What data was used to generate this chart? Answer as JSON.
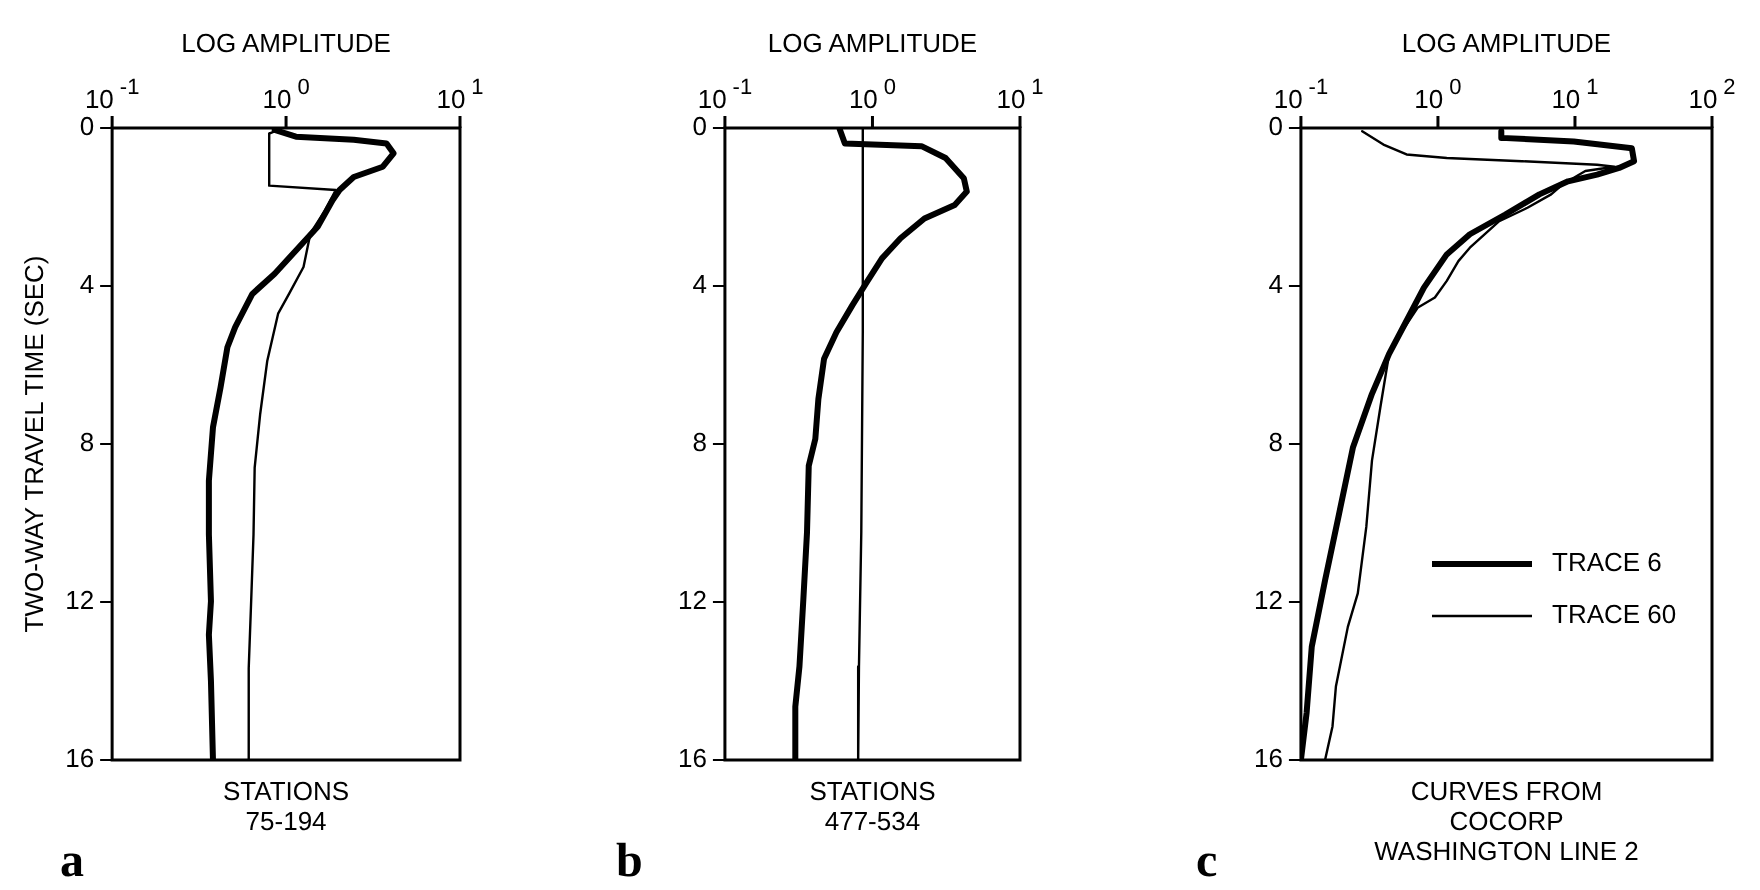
{
  "chart_data": [
    {
      "type": "line",
      "xlabel": "LOG AMPLITUDE",
      "ylabel": "TWO-WAY TRAVEL TIME (SEC)",
      "log": "x",
      "xlim": [
        0.1,
        10
      ],
      "xticks": [
        {
          "value": 0.1,
          "label": "10$^{-1}$"
        },
        {
          "value": 1,
          "label": "10$^{0}$"
        },
        {
          "value": 10,
          "label": "10$^{1}$"
        }
      ],
      "ylim": [
        16,
        0
      ],
      "yticks": [
        0,
        4,
        8,
        12,
        16
      ],
      "grid": false,
      "legend": false,
      "marker": "none",
      "line_style": "solid",
      "annotations": [
        "STATIONS",
        "75-194",
        "a"
      ],
      "series": [
        {
          "color": "#000000",
          "x": [
            0.86,
            1.14,
            2.45,
            3.78,
            4.15,
            3.6,
            2.45,
            2.03,
            1.85,
            1.52,
            1.14,
            0.86,
            0.64,
            0.51,
            0.46,
            0.42,
            0.38,
            0.36,
            0.36,
            0.37,
            0.36,
            0.37,
            0.38
          ],
          "values": [
            0.05,
            0.22,
            0.3,
            0.39,
            0.64,
            0.98,
            1.24,
            1.57,
            1.83,
            2.5,
            3.1,
            3.69,
            4.2,
            5.04,
            5.55,
            6.57,
            7.58,
            8.93,
            10.29,
            11.98,
            12.83,
            14.0,
            16
          ]
        },
        {
          "color": "#000000",
          "x": [
            0.9,
            0.8,
            0.8,
            1.93,
            1.68,
            1.38,
            1.26,
            1.04,
            0.9,
            0.78,
            0.71,
            0.66,
            0.65,
            0.63,
            0.61,
            0.61
          ],
          "values": [
            0.05,
            0.14,
            1.46,
            1.57,
            2.08,
            2.67,
            3.52,
            4.2,
            4.7,
            5.89,
            7.24,
            8.6,
            10.29,
            11.98,
            13.67,
            16
          ]
        }
      ]
    },
    {
      "type": "line",
      "xlabel": "LOG AMPLITUDE",
      "log": "x",
      "xlim": [
        0.1,
        10
      ],
      "xticks": [
        {
          "value": 0.1,
          "label": "10$^{-1}$"
        },
        {
          "value": 1,
          "label": "10$^{0}$"
        },
        {
          "value": 10,
          "label": "10$^{1}$"
        }
      ],
      "ylim": [
        16,
        0
      ],
      "yticks": [
        0,
        4,
        8,
        12,
        16
      ],
      "grid": false,
      "legend": false,
      "marker": "none",
      "line_style": "solid",
      "annotations": [
        "STATIONS",
        "477-534",
        "b"
      ],
      "series": [
        {
          "color": "#000000",
          "x": [
            0.6,
            0.65,
            2.15,
            3.13,
            4.16,
            4.36,
            3.61,
            2.25,
            1.55,
            1.16,
            0.92,
            0.73,
            0.57,
            0.47,
            0.43,
            0.41,
            0.37,
            0.36,
            0.34,
            0.32,
            0.3,
            0.3
          ],
          "values": [
            0.03,
            0.39,
            0.46,
            0.76,
            1.27,
            1.61,
            1.95,
            2.29,
            2.79,
            3.3,
            3.89,
            4.49,
            5.17,
            5.84,
            6.86,
            7.87,
            8.55,
            10.24,
            11.94,
            13.63,
            14.65,
            16
          ]
        },
        {
          "color": "#000000",
          "x": [
            0.86,
            0.86,
            0.84,
            0.81,
            0.8
          ],
          "values": [
            0.03,
            5.16,
            10.24,
            13.63,
            16
          ]
        }
      ]
    },
    {
      "type": "line",
      "xlabel": "LOG AMPLITUDE",
      "log": "x",
      "xlim": [
        0.1,
        100
      ],
      "xticks": [
        {
          "value": 0.1,
          "label": "10$^{-1}$"
        },
        {
          "value": 1,
          "label": "10$^{0}$"
        },
        {
          "value": 10,
          "label": "10$^{1}$"
        },
        {
          "value": 100,
          "label": "10$^{2}$"
        }
      ],
      "ylim": [
        16,
        0
      ],
      "yticks": [
        0,
        4,
        8,
        12,
        16
      ],
      "grid": false,
      "legend": "bottom right",
      "marker": "none",
      "line_style": "solid",
      "annotations": [
        "CURVES FROM",
        "COCORP",
        "WASHINGTON LINE 2",
        "c"
      ],
      "series": [
        {
          "name": "TRACE 6",
          "color": "#000000",
          "x": [
            2.9,
            2.9,
            9.8,
            26,
            27,
            21,
            14.5,
            8.9,
            5.5,
            3.1,
            1.71,
            1.16,
            0.79,
            0.59,
            0.44,
            0.33,
            0.24,
            0.19,
            0.15,
            0.12,
            0.11,
            0.1
          ],
          "values": [
            0.08,
            0.25,
            0.34,
            0.51,
            0.84,
            1.01,
            1.18,
            1.35,
            1.68,
            2.19,
            2.69,
            3.2,
            4.04,
            4.88,
            5.72,
            6.73,
            8.08,
            9.76,
            11.45,
            13.13,
            14.81,
            16
          ]
        },
        {
          "name": "TRACE 60",
          "color": "#000000",
          "x": [
            0.28,
            0.4,
            0.59,
            1.16,
            4.1,
            14.5,
            19.4,
            11.9,
            8.1,
            6.7,
            4.5,
            2.8,
            1.71,
            1.41,
            1.16,
            0.95,
            0.71,
            0.53,
            0.44,
            0.38,
            0.33,
            0.3,
            0.26,
            0.22,
            0.18,
            0.17,
            0.15
          ],
          "values": [
            0.08,
            0.42,
            0.67,
            0.76,
            0.84,
            0.93,
            0.98,
            1.09,
            1.43,
            1.68,
            2.02,
            2.36,
            3.03,
            3.37,
            3.87,
            4.29,
            4.55,
            5.22,
            5.72,
            7.07,
            8.42,
            10.1,
            11.78,
            12.63,
            14.14,
            15.15,
            16
          ]
        }
      ]
    }
  ]
}
